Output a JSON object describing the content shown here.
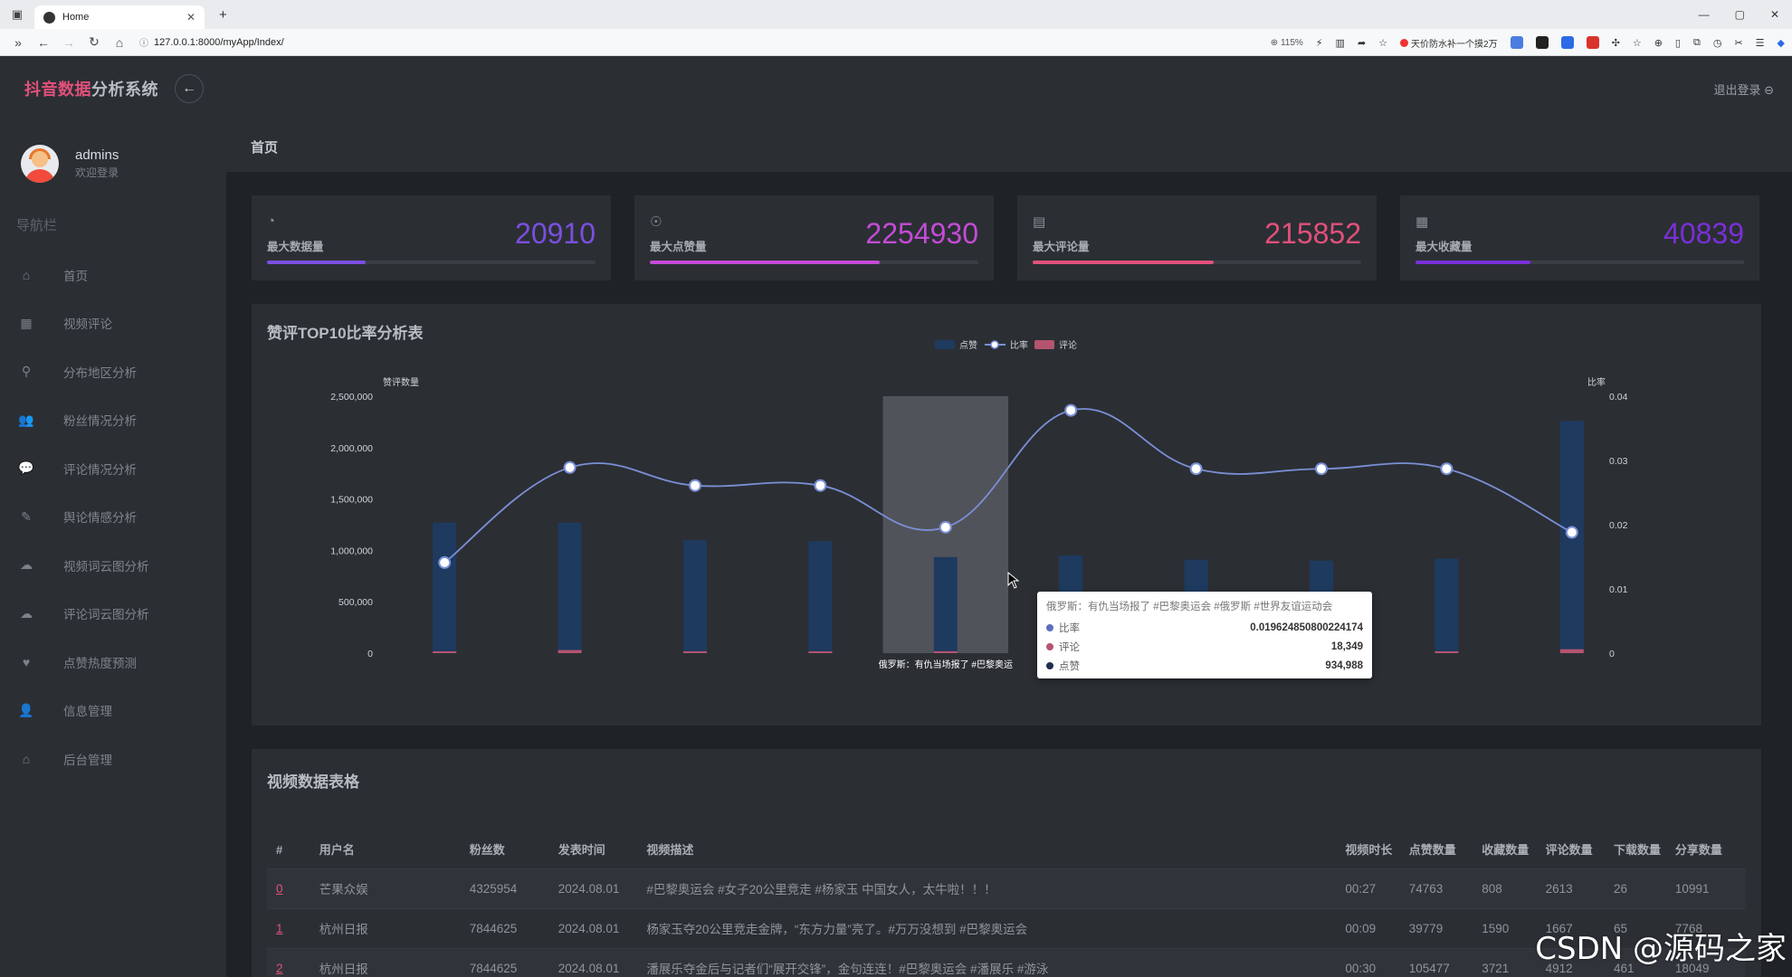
{
  "browser": {
    "tab_title": "Home",
    "tab_close": "✕",
    "new_tab": "+",
    "url": "127.0.0.1:8000/myApp/Index/",
    "zoom": "115%",
    "promo_text": "天价防水补一个摸2万",
    "window_controls": [
      "—",
      "▢",
      "✕"
    ]
  },
  "app": {
    "brand_part1": "抖音数据",
    "brand_part2": "分析系统",
    "back_icon": "←",
    "logout": "退出登录 ⊖"
  },
  "user": {
    "name": "admins",
    "subtitle": "欢迎登录"
  },
  "nav": {
    "title": "导航栏",
    "items": [
      {
        "label": "首页",
        "icon": "home-icon",
        "glyph": "⌂"
      },
      {
        "label": "视频评论",
        "icon": "grid-icon",
        "glyph": "▦"
      },
      {
        "label": "分布地区分析",
        "icon": "map-pin-icon",
        "glyph": "⚲"
      },
      {
        "label": "粉丝情况分析",
        "icon": "users-icon",
        "glyph": "👥"
      },
      {
        "label": "评论情况分析",
        "icon": "comment-icon",
        "glyph": "💬"
      },
      {
        "label": "舆论情感分析",
        "icon": "pen-icon",
        "glyph": "✎"
      },
      {
        "label": "视频词云图分析",
        "icon": "cloud-upload-icon",
        "glyph": "☁"
      },
      {
        "label": "评论词云图分析",
        "icon": "cloud-upload-icon",
        "glyph": "☁"
      },
      {
        "label": "点赞热度预测",
        "icon": "heart-icon",
        "glyph": "♥"
      },
      {
        "label": "信息管理",
        "icon": "user-icon",
        "glyph": "👤"
      },
      {
        "label": "后台管理",
        "icon": "home-icon",
        "glyph": "⌂"
      }
    ]
  },
  "breadcrumb": "首页",
  "stats": [
    {
      "label": "最大数据量",
      "value": "20910",
      "color": "#7b4fe0",
      "progress": 0.3,
      "icon": "gauge-icon",
      "glyph": "◔"
    },
    {
      "label": "最大点赞量",
      "value": "2254930",
      "color": "#c44bd6",
      "progress": 0.7,
      "icon": "lightbulb-icon",
      "glyph": "☉"
    },
    {
      "label": "最大评论量",
      "value": "215852",
      "color": "#e2507a",
      "progress": 0.55,
      "icon": "document-icon",
      "glyph": "▤"
    },
    {
      "label": "最大收藏量",
      "value": "40839",
      "color": "#7a2fd8",
      "progress": 0.35,
      "icon": "table-icon",
      "glyph": "▦"
    }
  ],
  "chart": {
    "title": "赞评TOP10比率分析表",
    "legend": [
      "点赞",
      "比率",
      "评论"
    ]
  },
  "chart_data": {
    "type": "bar",
    "title": "赞评TOP10比率分析表",
    "ylabel": "赞评数量",
    "y2label": "比率",
    "ylim": [
      0,
      2500000
    ],
    "y2lim": [
      0,
      0.04
    ],
    "yticks": [
      "0",
      "500,000",
      "1,000,000",
      "1,500,000",
      "2,000,000",
      "2,500,000"
    ],
    "y2ticks": [
      "0",
      "0.01",
      "0.02",
      "0.03",
      "0.04"
    ],
    "visible_xlabel": "俄罗斯：有仇当场报了 #巴黎奥运",
    "highlight_index": 4,
    "legend_position": "top-center",
    "series": [
      {
        "name": "点赞",
        "type": "bar",
        "color": "#1e3a5f",
        "values": [
          1270000,
          1270000,
          1100000,
          1090000,
          934988,
          950000,
          910000,
          900000,
          920000,
          2260000
        ]
      },
      {
        "name": "评论",
        "type": "bar",
        "color": "#b5546f",
        "values": [
          12000,
          30000,
          18000,
          15000,
          18349,
          17000,
          16000,
          15000,
          14000,
          38000
        ]
      },
      {
        "name": "比率",
        "type": "line",
        "color": "#7b8fd6",
        "values": [
          0.0141,
          0.0289,
          0.0261,
          0.0261,
          0.0196,
          0.0378,
          0.0287,
          0.0287,
          0.0287,
          0.0188
        ]
      }
    ]
  },
  "tooltip": {
    "title": "俄罗斯：有仇当场报了 #巴黎奥运会 #俄罗斯 #世界友谊运动会",
    "rows": [
      {
        "name": "比率",
        "value": "0.019624850800224174",
        "color": "#5b6fbf"
      },
      {
        "name": "评论",
        "value": "18,349",
        "color": "#b5546f"
      },
      {
        "name": "点赞",
        "value": "934,988",
        "color": "#1e2f4f"
      }
    ]
  },
  "table": {
    "title": "视频数据表格",
    "headers": [
      "#",
      "用户名",
      "粉丝数",
      "发表时间",
      "视频描述",
      "视频时长",
      "点赞数量",
      "收藏数量",
      "评论数量",
      "下载数量",
      "分享数量"
    ],
    "rows": [
      [
        "0",
        "芒果众娱",
        "4325954",
        "2024.08.01",
        "#巴黎奥运会 #女子20公里竞走 #杨家玉 中国女人，太牛啦！！！",
        "00:27",
        "74763",
        "808",
        "2613",
        "26",
        "10991"
      ],
      [
        "1",
        "杭州日报",
        "7844625",
        "2024.08.01",
        "杨家玉夺20公里竞走金牌，“东方力量”亮了。#万万没想到 #巴黎奥运会",
        "00:09",
        "39779",
        "1590",
        "1667",
        "65",
        "7768"
      ],
      [
        "2",
        "杭州日报",
        "7844625",
        "2024.08.01",
        "潘展乐夺金后与记者们“展开交锋”，金句连连！#巴黎奥运会 #潘展乐 #游泳",
        "00:30",
        "105477",
        "3721",
        "4912",
        "461",
        "18049"
      ]
    ]
  },
  "watermark": "CSDN @源码之家"
}
